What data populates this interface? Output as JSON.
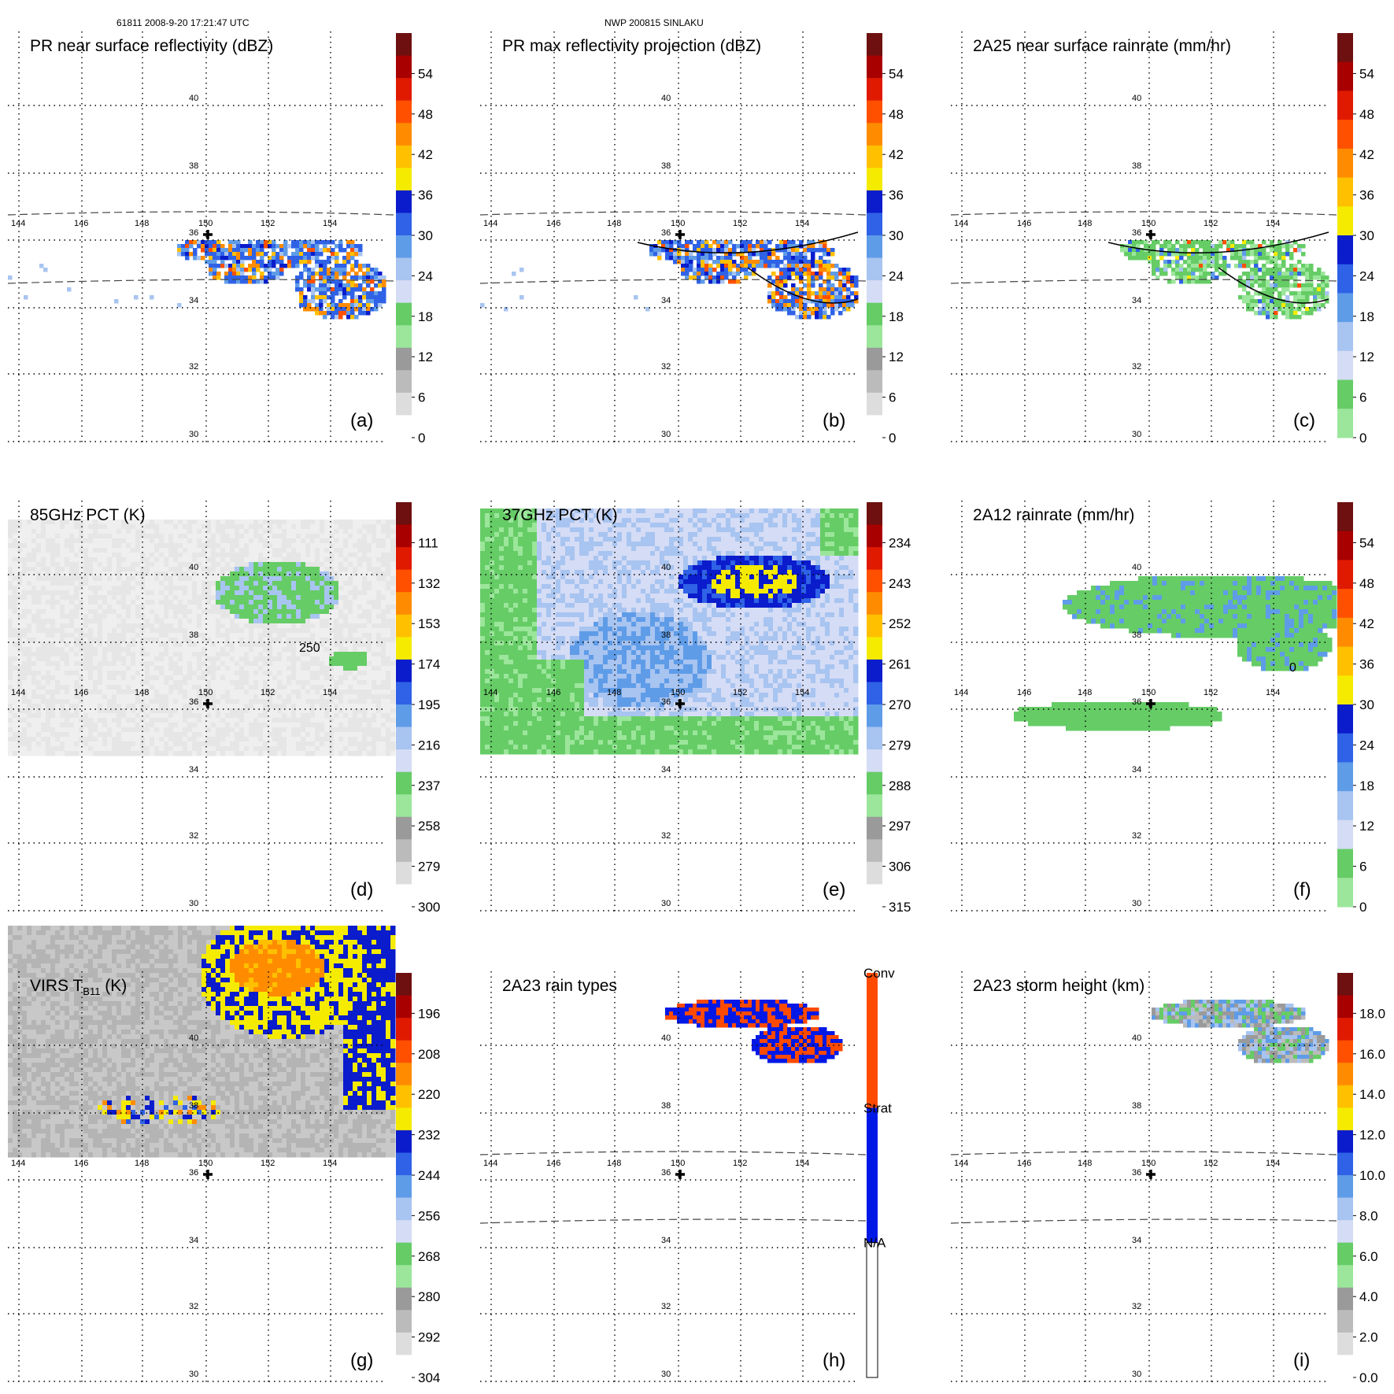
{
  "header": {
    "left": "61811 2008-9-20 17:21:47 UTC",
    "center": "NWP 200815 SINLAKU"
  },
  "lat_labels": [
    "40",
    "38",
    "36",
    "34",
    "32",
    "30"
  ],
  "lon_labels": [
    "144",
    "146",
    "148",
    "150",
    "152",
    "154"
  ],
  "colors": {
    "grays": [
      "#ffffff",
      "#dddddd",
      "#bbbbbb",
      "#9a9a9a"
    ],
    "greens": [
      "#9be69b",
      "#66cc66"
    ],
    "blues": [
      "#d5dcf5",
      "#a8c4f0",
      "#5f9ce8",
      "#2f62e6",
      "#0a1ccc"
    ],
    "hot": [
      "#f5eb00",
      "#ffc000",
      "#ff8c00",
      "#ff5000",
      "#e01a00",
      "#a80000",
      "#6e1010"
    ],
    "conv": "#ff4a00",
    "strat": "#0018e6"
  },
  "panels": [
    {
      "id": "a",
      "title": "PR near surface reflectivity (dBZ)",
      "letter": "(a)",
      "scheme": "std",
      "ticks": [
        "",
        "54",
        "48",
        "42",
        "36",
        "30",
        "24",
        "18",
        "12",
        "6",
        "0"
      ],
      "field": "pr"
    },
    {
      "id": "b",
      "title": "PR max reflectivity projection (dBZ)",
      "letter": "(b)",
      "scheme": "std",
      "ticks": [
        "",
        "54",
        "48",
        "42",
        "36",
        "30",
        "24",
        "18",
        "12",
        "6",
        "0"
      ],
      "field": "pr2"
    },
    {
      "id": "c",
      "title": "2A25 near surface rainrate (mm/hr)",
      "letter": "(c)",
      "scheme": "rain",
      "ticks": [
        "",
        "54",
        "48",
        "42",
        "36",
        "30",
        "24",
        "18",
        "12",
        "6",
        "0"
      ],
      "field": "rain25"
    },
    {
      "id": "d",
      "title": "85GHz PCT (K)",
      "letter": "(d)",
      "scheme": "std",
      "ticks": [
        "",
        "111",
        "132",
        "153",
        "174",
        "195",
        "216",
        "237",
        "258",
        "279",
        "300"
      ],
      "field": "pct85"
    },
    {
      "id": "e",
      "title": "37GHz PCT (K)",
      "letter": "(e)",
      "scheme": "std",
      "ticks": [
        "",
        "234",
        "243",
        "252",
        "261",
        "270",
        "279",
        "288",
        "297",
        "306",
        "315"
      ],
      "field": "pct37"
    },
    {
      "id": "f",
      "title": "2A12 rainrate (mm/hr)",
      "letter": "(f)",
      "scheme": "rain",
      "ticks": [
        "",
        "54",
        "48",
        "42",
        "36",
        "30",
        "24",
        "18",
        "12",
        "6",
        "0"
      ],
      "field": "rain12"
    },
    {
      "id": "g",
      "title_main": "VIRS T",
      "title_sub": "B11",
      "title_unit": " (K)",
      "letter": "(g)",
      "scheme": "std",
      "ticks": [
        "",
        "196",
        "208",
        "220",
        "232",
        "244",
        "256",
        "268",
        "280",
        "292",
        "304"
      ],
      "field": "virs"
    },
    {
      "id": "h",
      "title": "2A23 rain types",
      "letter": "(h)",
      "scheme": "types",
      "ticks": [
        "Conv",
        "Strat",
        "N/A"
      ],
      "field": "types"
    },
    {
      "id": "i",
      "title": "2A23 storm height (km)",
      "letter": "(i)",
      "scheme": "std",
      "ticks": [
        "",
        "18.0",
        "16.0",
        "14.0",
        "12.0",
        "10.0",
        "8.0",
        "6.0",
        "4.0",
        "2.0",
        "0.0"
      ],
      "field": "height"
    }
  ],
  "contour_labels": {
    "d": "250",
    "f": "0"
  }
}
